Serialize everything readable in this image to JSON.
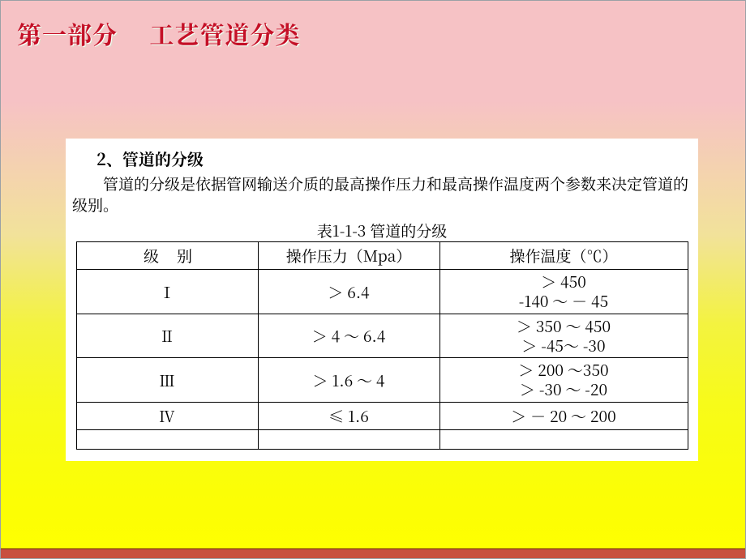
{
  "title": "第一部分　 工艺管道分类",
  "section_heading": "2、管道的分级",
  "body_para": "管道的分级是依据管网输送介质的最高操作压力和最高操作温度两个参数来决定管道的级别。",
  "table_caption": "表1-1-3 管道的分级",
  "table": {
    "headers": {
      "level": "级别",
      "pressure": "操作压力（Mpa）",
      "temperature": "操作温度（℃）"
    },
    "rows": [
      {
        "level": "Ⅰ",
        "pressure": "＞ 6.4",
        "temp_line1": "＞ 450",
        "temp_line2": "-140 ～ － 45"
      },
      {
        "level": "Ⅱ",
        "pressure": "＞ 4 ～ 6.4",
        "temp_line1": "＞ 350 ～ 450",
        "temp_line2": "＞ -45～ -30"
      },
      {
        "level": "Ⅲ",
        "pressure": "＞ 1.6 ～ 4",
        "temp_line1": "＞ 200 ～350",
        "temp_line2": "＞ -30 ～ -20"
      },
      {
        "level": "Ⅳ",
        "pressure": "≤ 1.6",
        "temp_line1": "＞ － 20 ～ 200",
        "temp_line2": ""
      }
    ]
  }
}
